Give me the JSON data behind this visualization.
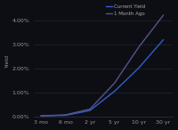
{
  "ylabel": "Yield",
  "background_color": "#0d0d14",
  "plot_bg_color": "#0d0d14",
  "grid_color": "#252535",
  "x_labels": [
    "3 mo",
    "6 mo",
    "2 yr",
    "5 yr",
    "10 yr",
    "30 yr"
  ],
  "x_positions": [
    0,
    1,
    2,
    3,
    4,
    5
  ],
  "current_yield": [
    0.0002,
    0.0004,
    0.0024,
    0.0104,
    0.0202,
    0.0319
  ],
  "month_ago": [
    0.0002,
    0.0006,
    0.003,
    0.0138,
    0.0289,
    0.0421
  ],
  "current_color": "#3060cc",
  "month_ago_color": "#555588",
  "legend_current": "Current Yield",
  "legend_month_ago": "1 Month Ago",
  "ytick_labels": [
    "0.00%",
    "1.00%",
    "2.00%",
    "3.00%",
    "4.00%"
  ],
  "ytick_values": [
    0.0,
    0.01,
    0.02,
    0.03,
    0.04
  ],
  "ylim_max": 0.046,
  "line_width": 1.0,
  "font_size": 4.5
}
